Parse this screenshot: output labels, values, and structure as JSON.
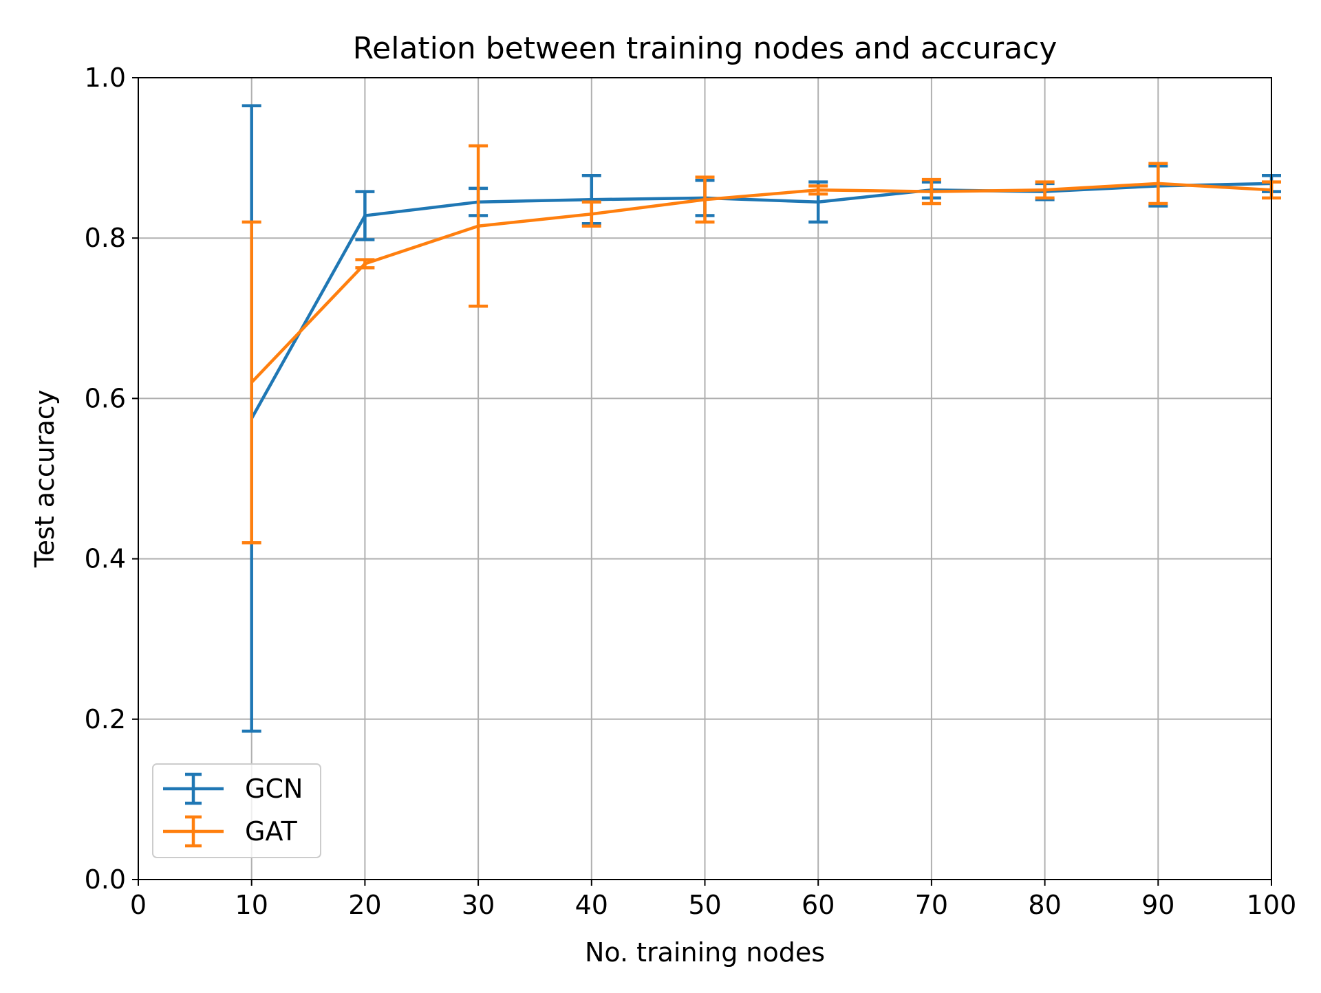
{
  "chart_data": {
    "type": "line",
    "title": "Relation between training nodes and accuracy",
    "xlabel": "No. training nodes",
    "ylabel": "Test accuracy",
    "xlim": [
      0,
      100
    ],
    "ylim": [
      0.0,
      1.0
    ],
    "x_ticks": [
      "0",
      "10",
      "20",
      "30",
      "40",
      "50",
      "60",
      "70",
      "80",
      "90",
      "100"
    ],
    "y_ticks": [
      "0.0",
      "0.2",
      "0.4",
      "0.6",
      "0.8",
      "1.0"
    ],
    "grid": true,
    "legend_position": "lower-left",
    "error_bars": true,
    "x": [
      10,
      20,
      30,
      40,
      50,
      60,
      70,
      80,
      90,
      100
    ],
    "series": [
      {
        "name": "GCN",
        "color": "#1f77b4",
        "values": [
          0.575,
          0.828,
          0.845,
          0.848,
          0.85,
          0.845,
          0.86,
          0.858,
          0.865,
          0.868
        ],
        "errors": [
          0.39,
          0.03,
          0.017,
          0.03,
          0.022,
          0.025,
          0.01,
          0.01,
          0.025,
          0.01
        ]
      },
      {
        "name": "GAT",
        "color": "#ff7f0e",
        "values": [
          0.62,
          0.768,
          0.815,
          0.83,
          0.848,
          0.86,
          0.858,
          0.86,
          0.868,
          0.86
        ],
        "errors": [
          0.2,
          0.005,
          0.1,
          0.015,
          0.028,
          0.005,
          0.015,
          0.01,
          0.025,
          0.01
        ]
      }
    ]
  }
}
